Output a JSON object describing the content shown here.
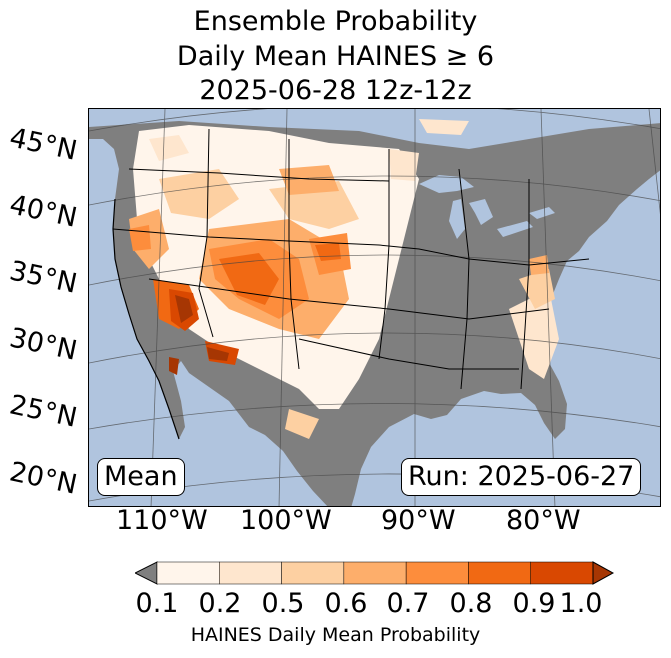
{
  "title": {
    "line1": "Ensemble Probability",
    "line2": "Daily Mean HAINES ≥ 6",
    "line3": "2025-06-28 12z-12z"
  },
  "map": {
    "lat_labels": [
      "45°N",
      "40°N",
      "35°N",
      "30°N",
      "25°N",
      "20°N"
    ],
    "lon_labels": [
      "110°W",
      "100°W",
      "90°W",
      "80°W"
    ],
    "stat_label": "Mean",
    "run_label": "Run: 2025-06-27"
  },
  "colors": {
    "ocean": "#b0c4de",
    "land_below_threshold": "#7f7f7f",
    "bins": [
      "#fff5eb",
      "#fee6ce",
      "#fdd0a2",
      "#fdae6b",
      "#fd8d3c",
      "#f16913",
      "#d94801",
      "#a63603"
    ]
  },
  "colorbar": {
    "ticks": [
      "0.1",
      "0.2",
      "0.5",
      "0.6",
      "0.7",
      "0.8",
      "0.9",
      "1.0"
    ],
    "label": "HAINES Daily Mean Probability"
  }
}
